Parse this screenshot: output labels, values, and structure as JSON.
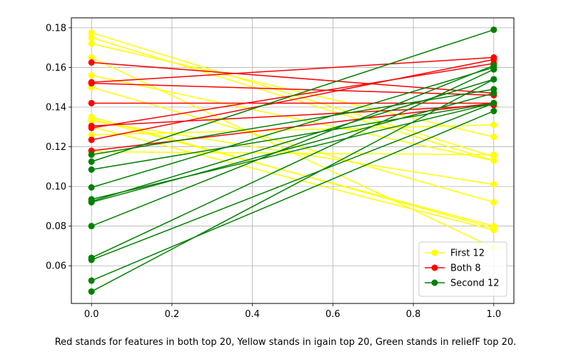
{
  "chart_data": {
    "type": "line",
    "x": [
      0,
      1
    ],
    "xlim": [
      -0.05,
      1.05
    ],
    "ylim": [
      0.041,
      0.185
    ],
    "x_ticks": [
      "0.0",
      "0.2",
      "0.4",
      "0.6",
      "0.8",
      "1.0"
    ],
    "y_ticks": [
      "0.06",
      "0.08",
      "0.10",
      "0.12",
      "0.14",
      "0.16",
      "0.18"
    ],
    "grid": true,
    "legend_placement": "lower-right",
    "caption": "Red stands for features in both top 20, Yellow stands in igain top 20, Green stands in reliefF top 20.",
    "series": [
      {
        "name": "First 12",
        "color": "#ffff00",
        "lines": [
          [
            0.1775,
            0.115
          ],
          [
            0.175,
            0.113
          ],
          [
            0.172,
            0.125
          ],
          [
            0.165,
            0.069
          ],
          [
            0.156,
            0.113
          ],
          [
            0.15,
            0.092
          ],
          [
            0.135,
            0.079
          ],
          [
            0.134,
            0.08
          ],
          [
            0.133,
            0.101
          ],
          [
            0.13,
            0.078
          ],
          [
            0.126,
            0.131
          ],
          [
            0.1175,
            0.116
          ]
        ]
      },
      {
        "name": "Both 8",
        "color": "#ff0000",
        "lines": [
          [
            0.1625,
            0.147
          ],
          [
            0.1525,
            0.165
          ],
          [
            0.152,
            0.146
          ],
          [
            0.142,
            0.142
          ],
          [
            0.1305,
            0.141
          ],
          [
            0.1295,
            0.162
          ],
          [
            0.1235,
            0.164
          ],
          [
            0.118,
            0.142
          ]
        ]
      },
      {
        "name": "Second 12",
        "color": "#008000",
        "lines": [
          [
            0.116,
            0.149
          ],
          [
            0.1125,
            0.179
          ],
          [
            0.1085,
            0.142
          ],
          [
            0.0995,
            0.16
          ],
          [
            0.0935,
            0.142
          ],
          [
            0.0925,
            0.154
          ],
          [
            0.092,
            0.147
          ],
          [
            0.08,
            0.161
          ],
          [
            0.064,
            0.159
          ],
          [
            0.063,
            0.142
          ],
          [
            0.0525,
            0.138
          ],
          [
            0.047,
            0.154
          ]
        ]
      }
    ]
  }
}
